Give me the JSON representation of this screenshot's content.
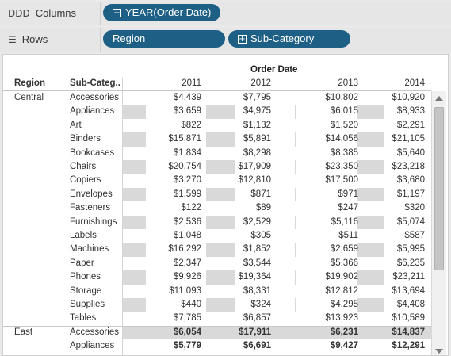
{
  "shelves": {
    "columns": {
      "label": "Columns",
      "icon": "columns-icon",
      "pills": [
        {
          "label": "YEAR(Order Date)",
          "has_plus": true
        }
      ]
    },
    "rows": {
      "label": "Rows",
      "icon": "rows-icon",
      "pills": [
        {
          "label": "Region",
          "has_plus": false
        },
        {
          "label": "Sub-Category",
          "has_plus": true
        }
      ]
    }
  },
  "colors": {
    "pill": "#1e5f86",
    "band_dark": "#d9d9d9",
    "band_light": "#ffffff"
  },
  "table": {
    "column_title": "Order Date",
    "row_headers": [
      "Region",
      "Sub-Categ.."
    ],
    "years": [
      "2011",
      "2012",
      "2013",
      "2014"
    ],
    "groups": [
      {
        "region": "Central",
        "rows": [
          {
            "sub": "Accessories",
            "values": [
              "$4,439",
              "$7,795",
              "$10,802",
              "$10,920"
            ]
          },
          {
            "sub": "Appliances",
            "values": [
              "$3,659",
              "$4,975",
              "$6,015",
              "$8,933"
            ]
          },
          {
            "sub": "Art",
            "values": [
              "$822",
              "$1,132",
              "$1,520",
              "$2,291"
            ]
          },
          {
            "sub": "Binders",
            "values": [
              "$15,871",
              "$5,891",
              "$14,056",
              "$21,105"
            ]
          },
          {
            "sub": "Bookcases",
            "values": [
              "$1,834",
              "$8,298",
              "$8,385",
              "$5,640"
            ]
          },
          {
            "sub": "Chairs",
            "values": [
              "$20,754",
              "$17,909",
              "$23,350",
              "$23,218"
            ]
          },
          {
            "sub": "Copiers",
            "values": [
              "$3,270",
              "$12,810",
              "$17,500",
              "$3,680"
            ]
          },
          {
            "sub": "Envelopes",
            "values": [
              "$1,599",
              "$871",
              "$971",
              "$1,197"
            ]
          },
          {
            "sub": "Fasteners",
            "values": [
              "$122",
              "$89",
              "$247",
              "$320"
            ]
          },
          {
            "sub": "Furnishings",
            "values": [
              "$2,536",
              "$2,529",
              "$5,116",
              "$5,074"
            ]
          },
          {
            "sub": "Labels",
            "values": [
              "$1,048",
              "$305",
              "$511",
              "$587"
            ]
          },
          {
            "sub": "Machines",
            "values": [
              "$16,292",
              "$1,852",
              "$2,659",
              "$5,995"
            ]
          },
          {
            "sub": "Paper",
            "values": [
              "$2,347",
              "$3,544",
              "$5,366",
              "$6,235"
            ]
          },
          {
            "sub": "Phones",
            "values": [
              "$9,926",
              "$19,364",
              "$19,902",
              "$23,211"
            ]
          },
          {
            "sub": "Storage",
            "values": [
              "$11,093",
              "$8,331",
              "$12,812",
              "$13,694"
            ]
          },
          {
            "sub": "Supplies",
            "values": [
              "$440",
              "$324",
              "$4,295",
              "$4,408"
            ]
          },
          {
            "sub": "Tables",
            "values": [
              "$7,785",
              "$6,857",
              "$13,923",
              "$10,589"
            ]
          }
        ]
      },
      {
        "region": "East",
        "rows": [
          {
            "sub": "Accessories",
            "values": [
              "$6,054",
              "$17,911",
              "$6,231",
              "$14,837"
            ]
          },
          {
            "sub": "Appliances",
            "values": [
              "$5,779",
              "$6,691",
              "$9,427",
              "$12,291"
            ]
          }
        ]
      }
    ]
  }
}
